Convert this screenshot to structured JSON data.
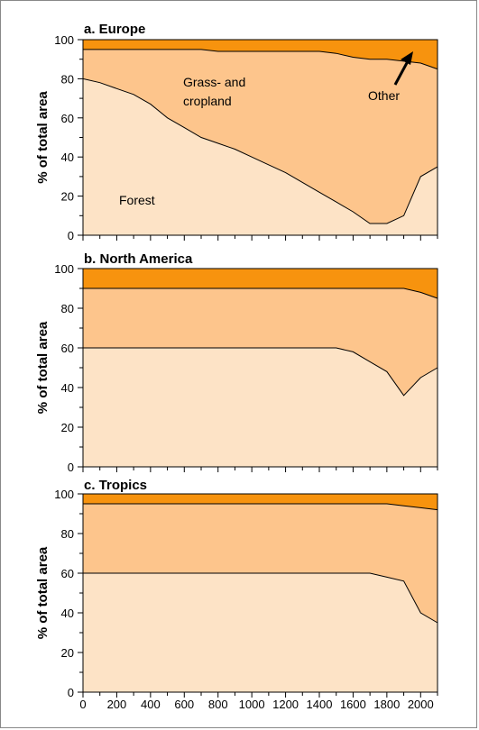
{
  "colors": {
    "forest": "#fde3c6",
    "grass": "#fdc58c",
    "other": "#f7930e",
    "line": "#000000"
  },
  "x_ticks": [
    "0",
    "200",
    "400",
    "600",
    "800",
    "1000",
    "1200",
    "1400",
    "1600",
    "1800",
    "2000"
  ],
  "chart_data": [
    {
      "type": "area",
      "title": "a. Europe",
      "ylabel": "% of total area",
      "xlim": [
        0,
        2100
      ],
      "ylim": [
        0,
        100
      ],
      "yticks": [
        "0",
        "20",
        "40",
        "60",
        "80",
        "100"
      ],
      "annotations": {
        "grass": "Grass- and",
        "grass2": "cropland",
        "forest": "Forest",
        "other": "Other"
      },
      "forest": {
        "x": [
          0,
          100,
          200,
          300,
          400,
          500,
          600,
          700,
          800,
          900,
          1000,
          1100,
          1200,
          1300,
          1400,
          1500,
          1600,
          1700,
          1800,
          1900,
          2000,
          2100
        ],
        "y": [
          80,
          78,
          75,
          72,
          67,
          60,
          55,
          50,
          47,
          44,
          40,
          36,
          32,
          27,
          22,
          17,
          12,
          6,
          6,
          10,
          30,
          35
        ]
      },
      "grass_top": {
        "x": [
          0,
          100,
          200,
          300,
          400,
          500,
          600,
          700,
          800,
          900,
          1000,
          1100,
          1200,
          1300,
          1400,
          1500,
          1600,
          1700,
          1800,
          1900,
          2000,
          2100
        ],
        "y": [
          95,
          95,
          95,
          95,
          95,
          95,
          95,
          95,
          94,
          94,
          94,
          94,
          94,
          94,
          94,
          93,
          91,
          90,
          90,
          89,
          88,
          85
        ]
      }
    },
    {
      "type": "area",
      "title": "b. North America",
      "ylabel": "% of total area",
      "xlim": [
        0,
        2100
      ],
      "ylim": [
        0,
        100
      ],
      "yticks": [
        "0",
        "20",
        "40",
        "60",
        "80",
        "100"
      ],
      "forest": {
        "x": [
          0,
          200,
          400,
          600,
          800,
          1000,
          1200,
          1400,
          1500,
          1600,
          1700,
          1800,
          1900,
          2000,
          2100
        ],
        "y": [
          60,
          60,
          60,
          60,
          60,
          60,
          60,
          60,
          60,
          58,
          53,
          48,
          36,
          45,
          50
        ]
      },
      "grass_top": {
        "x": [
          0,
          200,
          400,
          600,
          800,
          1000,
          1200,
          1400,
          1600,
          1800,
          1900,
          2000,
          2100
        ],
        "y": [
          90,
          90,
          90,
          90,
          90,
          90,
          90,
          90,
          90,
          90,
          90,
          88,
          85
        ]
      }
    },
    {
      "type": "area",
      "title": "c. Tropics",
      "ylabel": "% of total area",
      "xlim": [
        0,
        2100
      ],
      "ylim": [
        0,
        100
      ],
      "yticks": [
        "0",
        "20",
        "40",
        "60",
        "80",
        "100"
      ],
      "forest": {
        "x": [
          0,
          200,
          400,
          600,
          800,
          1000,
          1200,
          1400,
          1600,
          1700,
          1800,
          1900,
          2000,
          2100
        ],
        "y": [
          60,
          60,
          60,
          60,
          60,
          60,
          60,
          60,
          60,
          60,
          58,
          56,
          40,
          35
        ]
      },
      "grass_top": {
        "x": [
          0,
          200,
          400,
          600,
          800,
          1000,
          1200,
          1400,
          1600,
          1700,
          1800,
          1900,
          2000,
          2100
        ],
        "y": [
          95,
          95,
          95,
          95,
          95,
          95,
          95,
          95,
          95,
          95,
          95,
          94,
          93,
          92
        ]
      }
    }
  ]
}
